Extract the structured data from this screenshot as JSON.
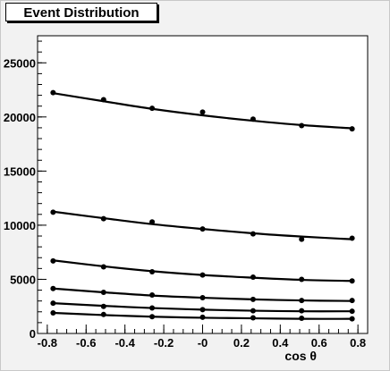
{
  "chart_data": {
    "type": "line",
    "title": "Event Distribution",
    "xlabel": "cos θ",
    "ylabel": "",
    "xlim": [
      -0.85,
      0.85
    ],
    "ylim": [
      0,
      27500
    ],
    "x_ticks": [
      -0.8,
      -0.6,
      -0.4,
      -0.2,
      0,
      0.2,
      0.4,
      0.6,
      0.8
    ],
    "x_tick_labels": [
      "-0.8",
      "-0.6",
      "-0.4",
      "-0.2",
      "-0",
      "0.2",
      "0.4",
      "0.6",
      "0.8"
    ],
    "y_ticks": [
      0,
      5000,
      10000,
      15000,
      20000,
      25000
    ],
    "y_tick_labels": [
      "0",
      "5000",
      "10000",
      "15000",
      "20000",
      "25000"
    ],
    "grid": false,
    "legend": "none",
    "color": "#000000",
    "x": [
      -0.77,
      -0.51,
      -0.26,
      0.0,
      0.26,
      0.51,
      0.77
    ],
    "series": [
      {
        "values": [
          22250,
          21600,
          20800,
          20450,
          19800,
          19200,
          18900
        ],
        "fit": [
          22200,
          21450,
          20750,
          20150,
          19650,
          19250,
          18950
        ]
      },
      {
        "values": [
          11200,
          10600,
          10300,
          9650,
          9200,
          8700,
          8800
        ],
        "fit": [
          11250,
          10650,
          10100,
          9650,
          9250,
          8950,
          8700
        ]
      },
      {
        "values": [
          6700,
          6150,
          5700,
          5400,
          5200,
          5000,
          4850
        ],
        "fit": [
          6750,
          6200,
          5750,
          5400,
          5150,
          4950,
          4850
        ]
      },
      {
        "values": [
          4150,
          3800,
          3550,
          3300,
          3150,
          3050,
          3050
        ],
        "fit": [
          4150,
          3800,
          3500,
          3300,
          3150,
          3050,
          3000
        ]
      },
      {
        "values": [
          2800,
          2500,
          2350,
          2200,
          2100,
          2100,
          2050
        ],
        "fit": [
          2800,
          2550,
          2350,
          2200,
          2100,
          2050,
          2050
        ]
      },
      {
        "values": [
          1900,
          1750,
          1550,
          1500,
          1450,
          1400,
          1350
        ],
        "fit": [
          1900,
          1700,
          1550,
          1450,
          1400,
          1350,
          1350
        ]
      }
    ]
  }
}
